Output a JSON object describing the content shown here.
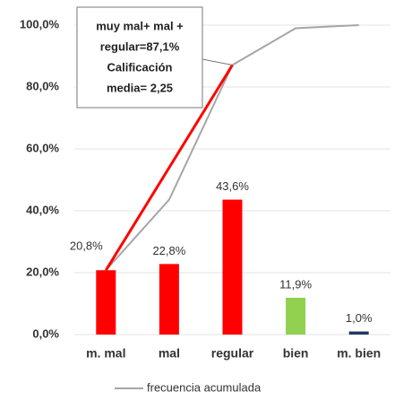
{
  "chart_data": {
    "type": "bar",
    "categories": [
      "m. mal",
      "mal",
      "regular",
      "bien",
      "m. bien"
    ],
    "values": [
      20.8,
      22.8,
      43.6,
      11.9,
      1.0
    ],
    "value_labels": [
      "20,8%",
      "22,8%",
      "43,6%",
      "11,9%",
      "1,0%"
    ],
    "colors": [
      "#ff0000",
      "#ff0000",
      "#ff0000",
      "#92d050",
      "#1f3864"
    ],
    "cumulative": {
      "name": "frecuencia acumulada",
      "color": "#a6a6a6",
      "values": [
        20.8,
        43.6,
        87.1,
        99.0,
        100.0
      ]
    },
    "annotation": {
      "lines": [
        "muy mal+ mal +",
        "regular=87,1%",
        "Calificación",
        "media= 2,25"
      ],
      "color": "#ff0000"
    },
    "ylim": [
      0,
      100
    ],
    "yticks": [
      {
        "value": 0,
        "label": "0,0%"
      },
      {
        "value": 20,
        "label": "20,0%"
      },
      {
        "value": 40,
        "label": "40,0%"
      },
      {
        "value": 60,
        "label": "60,0%"
      },
      {
        "value": 80,
        "label": "80,0%"
      },
      {
        "value": 100,
        "label": "100,0%"
      }
    ],
    "grid": true
  }
}
